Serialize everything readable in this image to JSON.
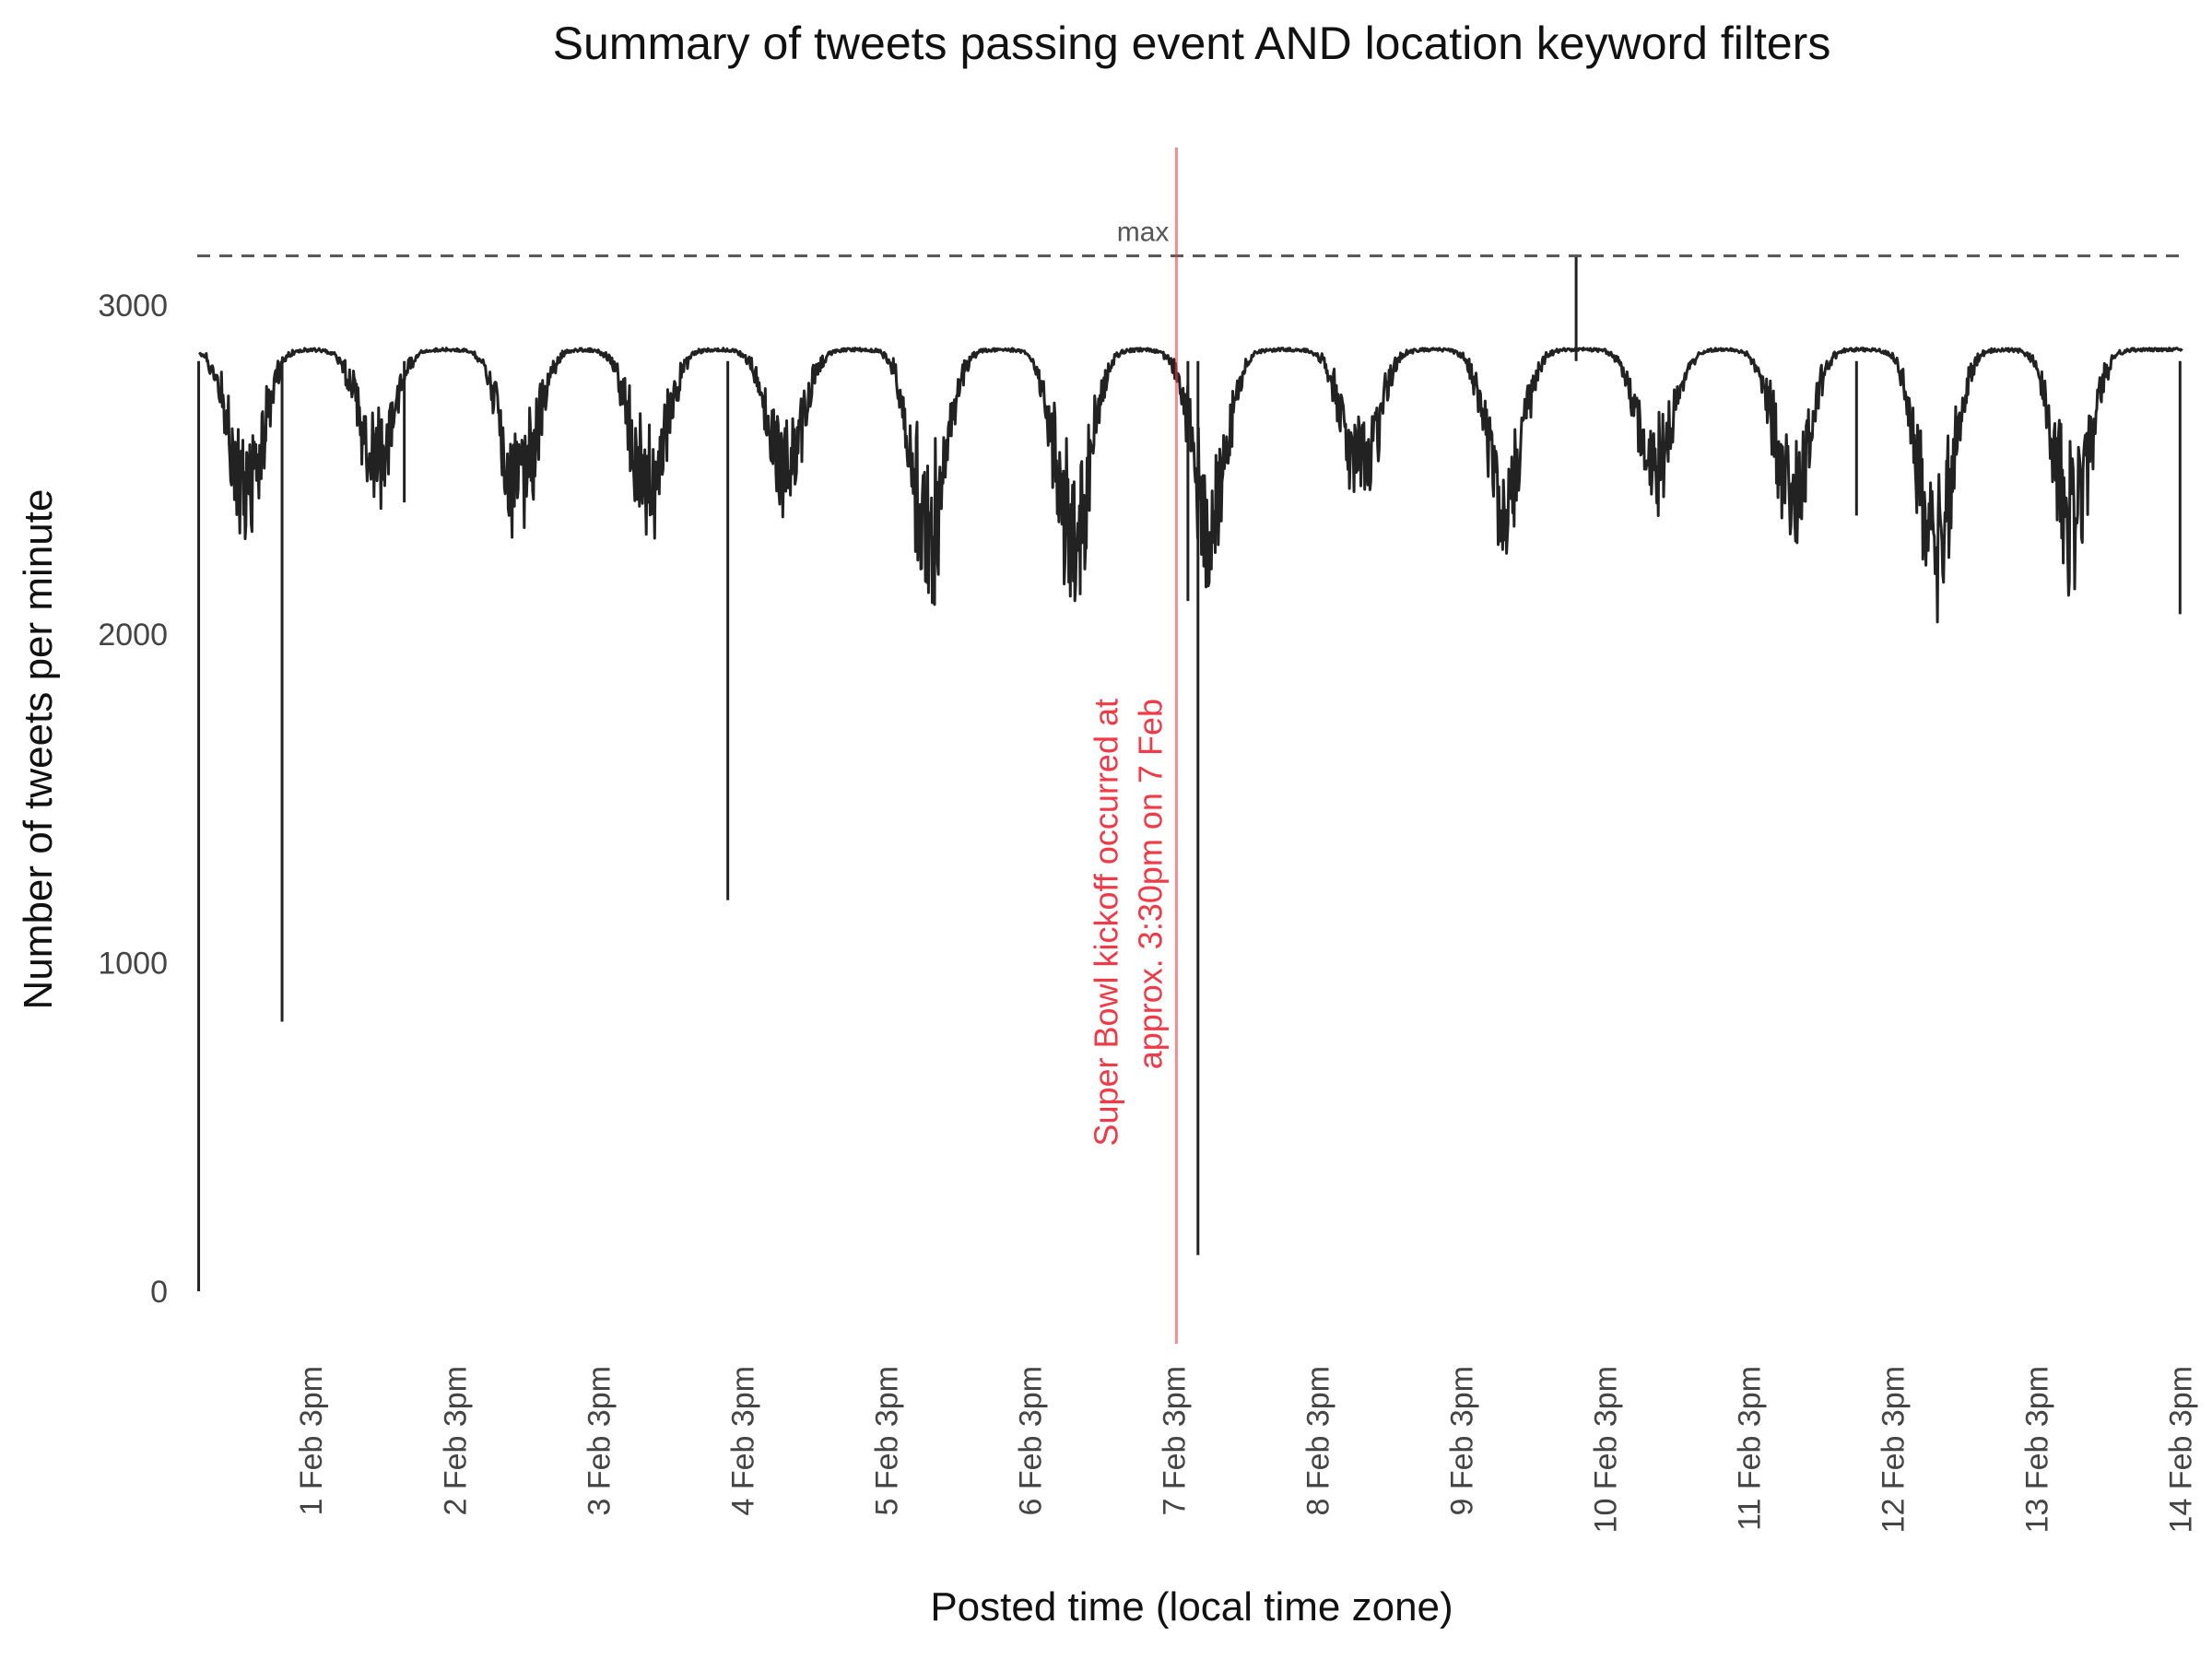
{
  "chart_data": {
    "type": "line",
    "title": "Summary of tweets passing event AND location keyword filters",
    "xlabel": "Posted time (local time zone)",
    "ylabel": "Number of tweets per minute",
    "yticks": [
      0,
      1000,
      2000,
      3000
    ],
    "xticks": [
      "1 Feb  3pm",
      "2 Feb  3pm",
      "3 Feb  3pm",
      "4 Feb  3pm",
      "5 Feb  3pm",
      "6 Feb  3pm",
      "7 Feb  3pm",
      "8 Feb  3pm",
      "9 Feb  3pm",
      "10 Feb  3pm",
      "11 Feb  3pm",
      "12 Feb  3pm",
      "13 Feb  3pm",
      "14 Feb  3pm"
    ],
    "ylim": [
      -160,
      3480
    ],
    "xlim_days": [
      -0.79,
      13.03
    ],
    "grid": false,
    "line_color": "#222222",
    "max_value": 3150,
    "max_label": "max",
    "annotation": {
      "x_day": 6.02,
      "text_line1": "Super Bowl kickoff occurred at",
      "text_line2": "approx. 3:30pm on 7 Feb",
      "color": "#f03a47"
    },
    "baseline": 2870,
    "daily_minima": [
      {
        "day": -0.45,
        "value": 2330
      },
      {
        "day": 0.45,
        "value": 2450
      },
      {
        "day": 1.45,
        "value": 2340
      },
      {
        "day": 2.35,
        "value": 2320
      },
      {
        "day": 3.3,
        "value": 2400
      },
      {
        "day": 4.3,
        "value": 2150
      },
      {
        "day": 5.3,
        "value": 2170
      },
      {
        "day": 6.25,
        "value": 2220
      },
      {
        "day": 7.3,
        "value": 2370
      },
      {
        "day": 8.3,
        "value": 2300
      },
      {
        "day": 9.35,
        "value": 2420
      },
      {
        "day": 10.3,
        "value": 2330
      },
      {
        "day": 11.3,
        "value": 2120
      },
      {
        "day": 12.25,
        "value": 2200
      }
    ],
    "spikes": [
      {
        "day": -0.78,
        "value": 0
      },
      {
        "day": -0.2,
        "value": 820
      },
      {
        "day": 0.65,
        "value": 2400
      },
      {
        "day": 2.9,
        "value": 1190
      },
      {
        "day": 6.1,
        "value": 2100
      },
      {
        "day": 6.17,
        "value": 110
      },
      {
        "day": 8.8,
        "value": 3150
      },
      {
        "day": 10.75,
        "value": 2360
      },
      {
        "day": 13.0,
        "value": 2060
      }
    ]
  }
}
